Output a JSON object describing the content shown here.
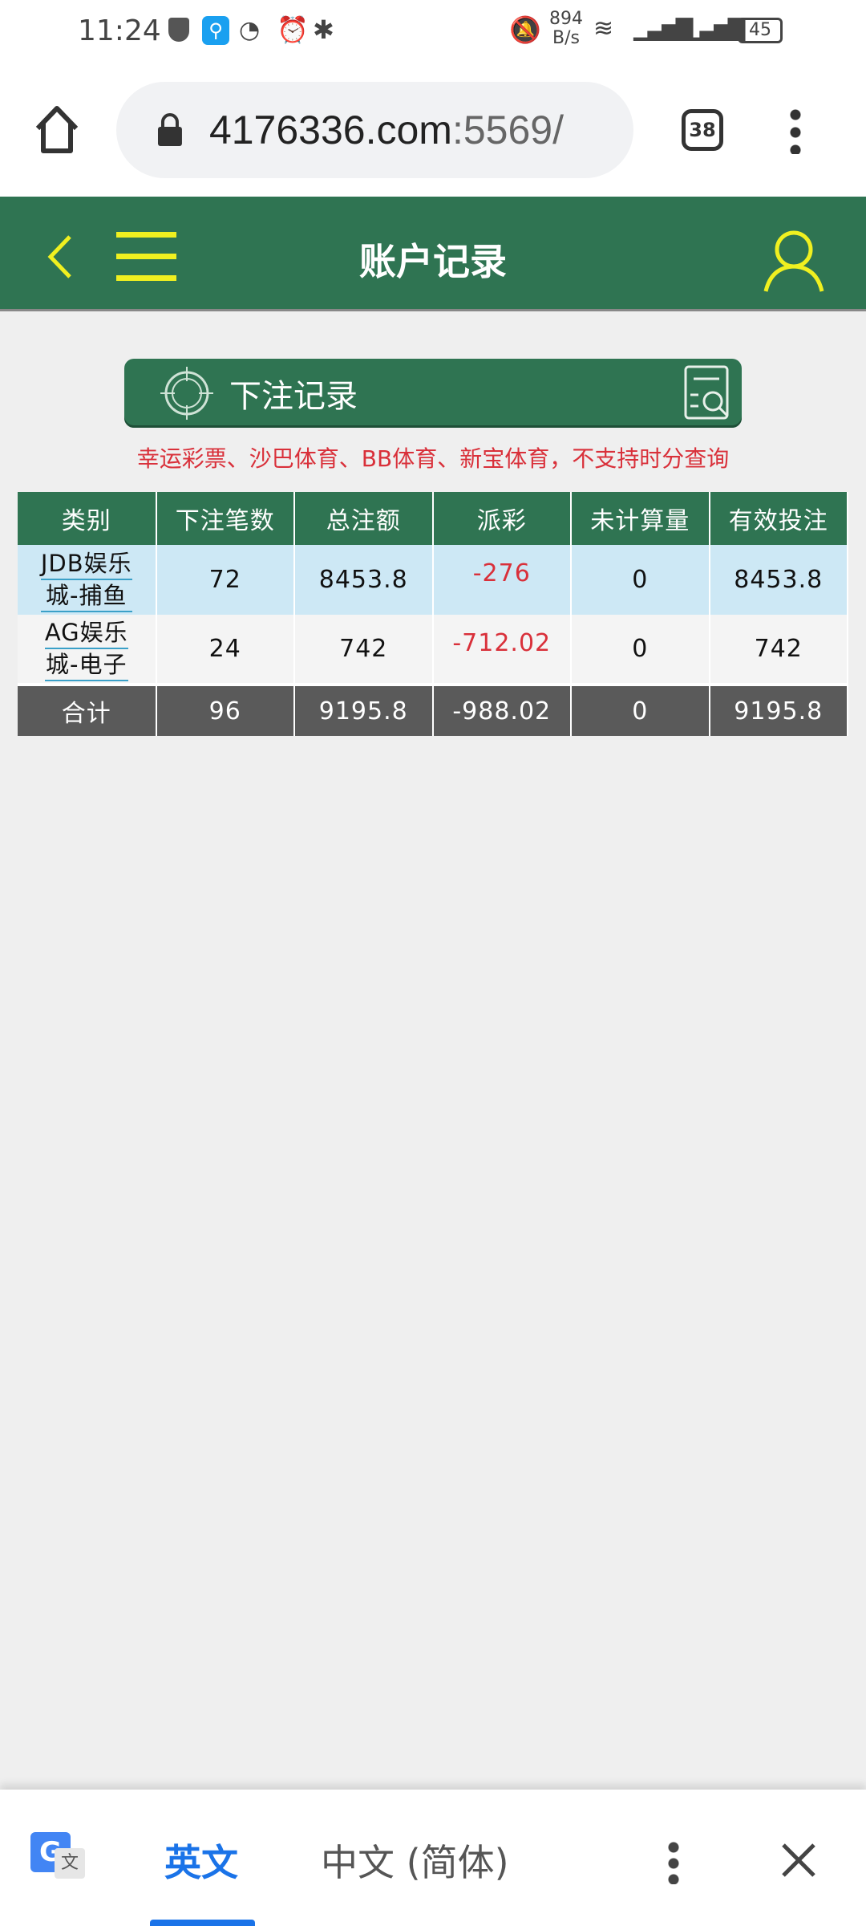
{
  "status_bar": {
    "time": "11:24",
    "net_speed": "894",
    "net_unit": "B/s",
    "battery": "45",
    "icons": [
      "shield-check-icon",
      "search-app-icon",
      "speedometer-icon",
      "alarm-icon",
      "bluetooth-icon",
      "bell-off-icon",
      "wifi-icon",
      "signal-4g-icon",
      "signal-4g-icon",
      "battery-icon"
    ]
  },
  "browser": {
    "url_host": "4176336.com",
    "url_port": ":5569/",
    "tab_count": "38"
  },
  "header": {
    "title": "账户记录",
    "accent": "#f0f020",
    "bg": "#2f7452"
  },
  "section": {
    "label": "下注记录",
    "notice": "幸运彩票、沙巴体育、BB体育、新宝体育，不支持时分查询"
  },
  "table": {
    "columns": [
      "类别",
      "下注笔数",
      "总注额",
      "派彩",
      "未计算量",
      "有效投注"
    ],
    "rows": [
      {
        "cat1": "JDB娱乐",
        "cat2": "城-捕鱼",
        "count": "72",
        "total": "8453.8",
        "payout": "-276",
        "unsettled": "0",
        "valid": "8453.8"
      },
      {
        "cat1": "AG娱乐",
        "cat2": "城-电子",
        "count": "24",
        "total": "742",
        "payout": "-712.02",
        "unsettled": "0",
        "valid": "742"
      }
    ],
    "totals": {
      "label": "合计",
      "count": "96",
      "total": "9195.8",
      "payout": "-988.02",
      "unsettled": "0",
      "valid": "9195.8"
    }
  },
  "translate_bar": {
    "lang_active": "英文",
    "lang_other": "中文 (简体)"
  }
}
